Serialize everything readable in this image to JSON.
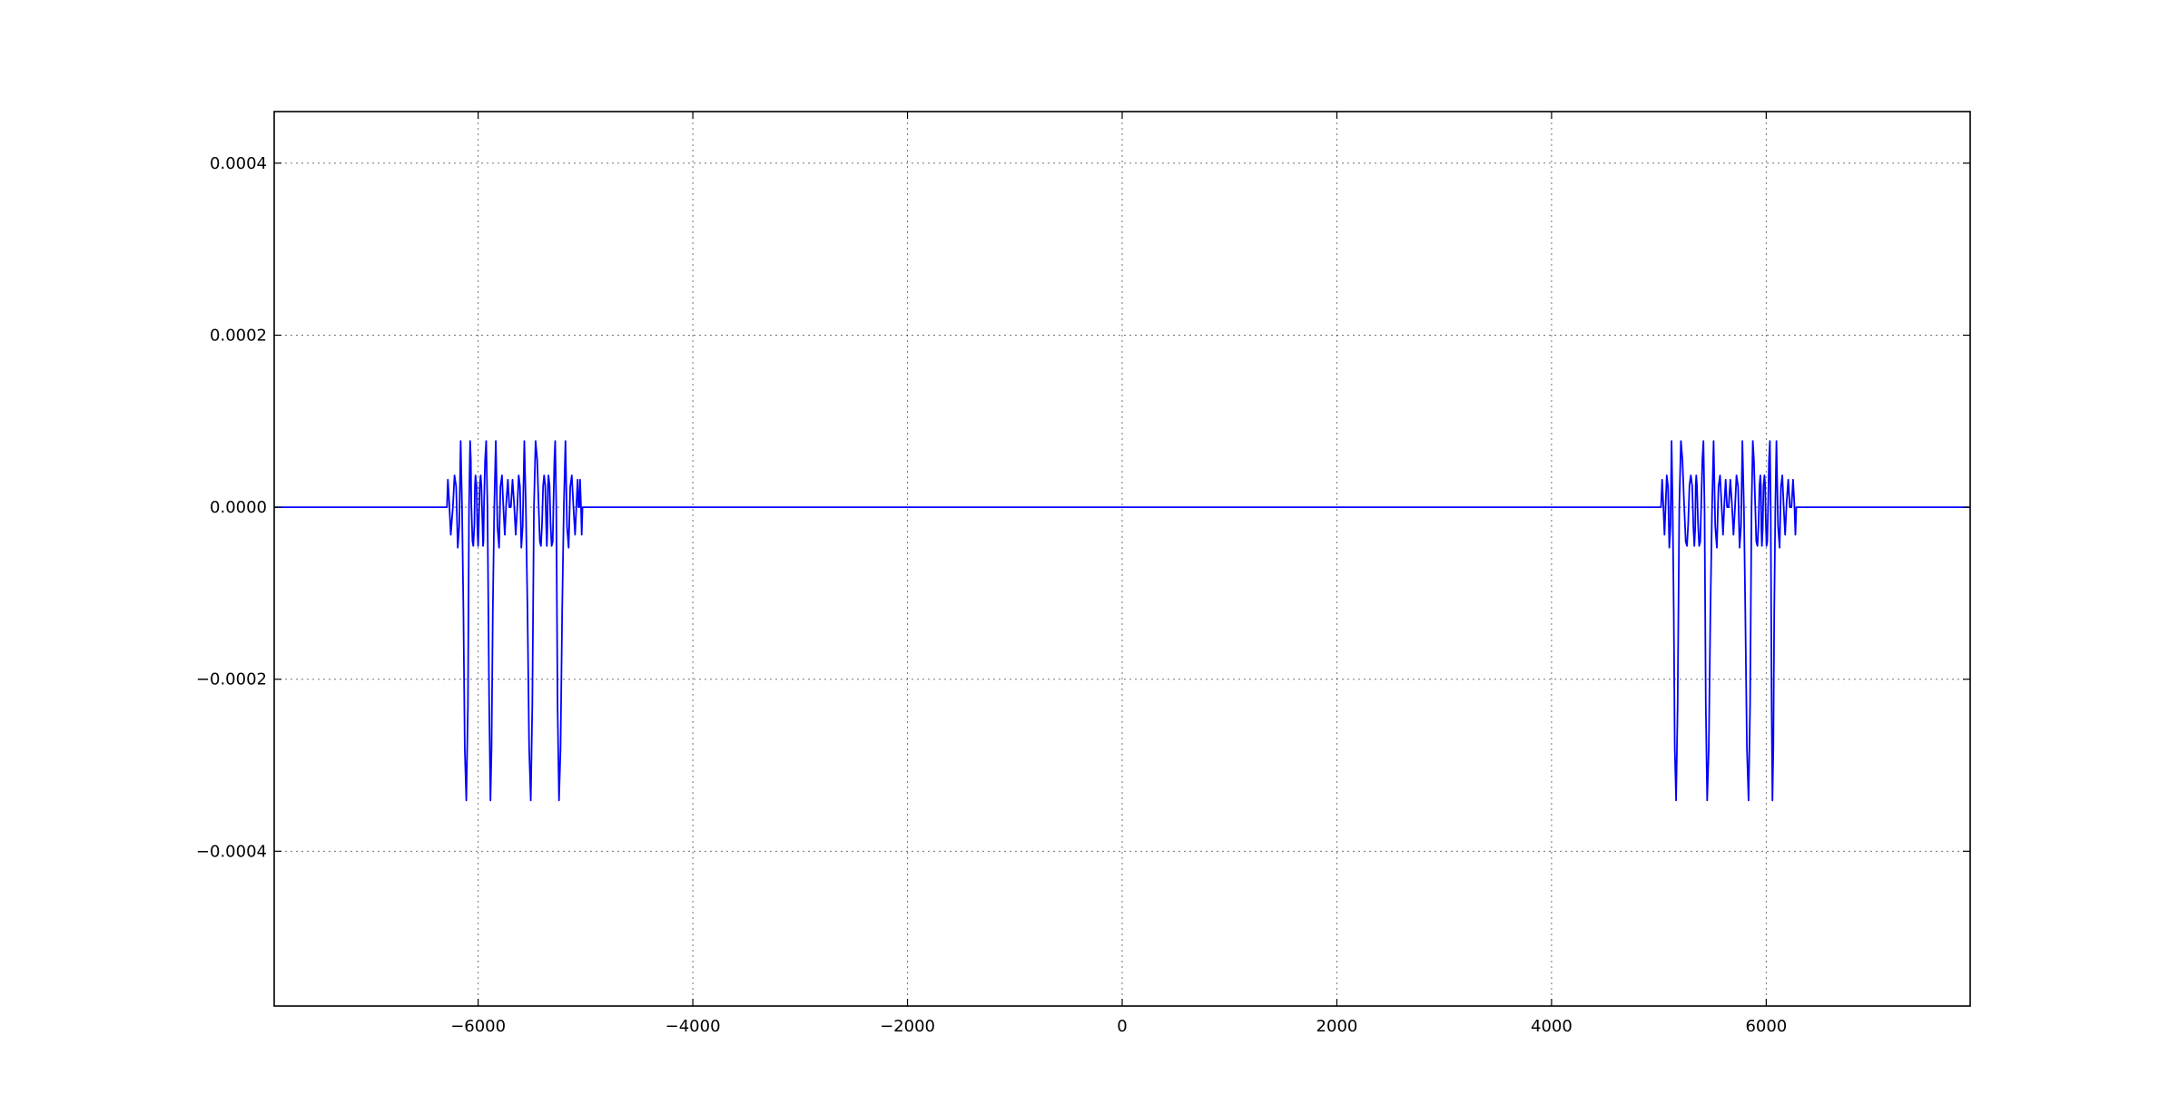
{
  "chart_data": {
    "type": "line",
    "title": "",
    "xlabel": "",
    "ylabel": "",
    "xlim": [
      -7900,
      7900
    ],
    "ylim": [
      -0.00058,
      0.00046
    ],
    "grid": true,
    "x_ticks": [
      -6000,
      -4000,
      -2000,
      0,
      2000,
      4000,
      6000
    ],
    "x_tick_labels": [
      "−6000",
      "−4000",
      "−2000",
      "0",
      "2000",
      "4000",
      "6000"
    ],
    "y_ticks": [
      0.0004,
      0.0002,
      0.0,
      -0.0002,
      -0.0004
    ],
    "y_tick_labels": [
      "0.0004",
      "0.0002",
      "0.0000",
      "−0.0002",
      "−0.0004"
    ],
    "series": [
      {
        "color": "#0000ff",
        "x": [
          -7900,
          -6290,
          -6282,
          -6269,
          -6255,
          -6235,
          -6220,
          -6205,
          -6190,
          -6176,
          -6163,
          -6150,
          -6137,
          -6125,
          -6110,
          -6095,
          -6085,
          -6075,
          -6068,
          -6064,
          -6053,
          -6045,
          -6035,
          -6030,
          -6025,
          -6015,
          -6007,
          -6000,
          -5995,
          -5985,
          -5977,
          -5970,
          -5960,
          -5955,
          -5950,
          -5945,
          -5935,
          -5925,
          -5913,
          -5897,
          -5885,
          -5875,
          -5863,
          -5850,
          -5835,
          -5820,
          -5805,
          -5792,
          -5778,
          -5765,
          -5752,
          -5738,
          -5723,
          -5709,
          -5695,
          -5680,
          -5665,
          -5650,
          -5635,
          -5622,
          -5610,
          -5598,
          -5585,
          -5570,
          -5555,
          -5540,
          -5525,
          -5510,
          -5495,
          -5480,
          -5465,
          -5450,
          -5437,
          -5425,
          -5415,
          -5405,
          -5395,
          -5385,
          -5375,
          -5365,
          -5360,
          -5355,
          -5350,
          -5345,
          -5335,
          -5325,
          -5315,
          -5305,
          -5298,
          -5290,
          -5282,
          -5272,
          -5260,
          -5247,
          -5232,
          -5217,
          -5202,
          -5187,
          -5172,
          -5157,
          -5142,
          -5127,
          -5112,
          -5097,
          -5083,
          -5073,
          -5065,
          -5058,
          -5050,
          -5043,
          -5035,
          -5028,
          -5018,
          5020,
          5030,
          5040,
          5052,
          5062,
          5073,
          5085,
          5097,
          5108,
          5118,
          5128,
          5138,
          5148,
          5160,
          5175,
          5190,
          5205,
          5220,
          5235,
          5250,
          5262,
          5273,
          5285,
          5297,
          5310,
          5322,
          5330,
          5338,
          5343,
          5348,
          5355,
          5365,
          5375,
          5385,
          5395,
          5405,
          5415,
          5425,
          5437,
          5450,
          5465,
          5480,
          5495,
          5510,
          5525,
          5540,
          5555,
          5570,
          5585,
          5598,
          5610,
          5622,
          5635,
          5650,
          5665,
          5680,
          5695,
          5709,
          5723,
          5738,
          5752,
          5765,
          5778,
          5792,
          5805,
          5820,
          5835,
          5850,
          5863,
          5875,
          5885,
          5897,
          5907,
          5918,
          5928,
          5937,
          5945,
          5950,
          5955,
          5960,
          5967,
          5975,
          5983,
          5990,
          5997,
          6003,
          6010,
          6018,
          6026,
          6034,
          6042,
          6050,
          6058,
          6066,
          6075,
          6085,
          6095,
          6110,
          6125,
          6137,
          6150,
          6163,
          6176,
          6190,
          6205,
          6220,
          6235,
          6250,
          6262,
          6272,
          6280,
          6285,
          7900
        ],
        "y": [
          0.0,
          0.0,
          3.2e-05,
          5e-06,
          -3.2e-05,
          0.0,
          3.7e-05,
          2.4e-05,
          -4.7e-05,
          -2.2e-05,
          7.7e-05,
          0.0,
          -0.00012,
          -0.00028,
          -0.000341,
          -0.00023,
          0.0,
          7.7e-05,
          5.5e-05,
          4e-06,
          -4e-05,
          -4.5e-05,
          -2e-05,
          2.5e-05,
          3.7e-05,
          2.5e-05,
          -2.5e-05,
          -4.5e-05,
          -2.5e-05,
          2.5e-05,
          3.7e-05,
          2.5e-05,
          -2e-05,
          -4.5e-05,
          -4e-05,
          4e-06,
          5.5e-05,
          7.7e-05,
          0.0,
          -0.00023,
          -0.000341,
          -0.00028,
          -0.00012,
          0.0,
          7.7e-05,
          -2.2e-05,
          -4.7e-05,
          2.4e-05,
          3.7e-05,
          0.0,
          -3.2e-05,
          5e-06,
          3.2e-05,
          0.0,
          0.0,
          3.2e-05,
          5e-06,
          -3.2e-05,
          0.0,
          3.7e-05,
          2.4e-05,
          -4.7e-05,
          -2.2e-05,
          7.7e-05,
          0.0,
          -0.00012,
          -0.00028,
          -0.000341,
          -0.00023,
          0.0,
          7.7e-05,
          5.5e-05,
          4e-06,
          -4e-05,
          -4.5e-05,
          -2e-05,
          2.5e-05,
          3.7e-05,
          2.5e-05,
          -2.5e-05,
          -4.5e-05,
          -2.5e-05,
          2.5e-05,
          3.7e-05,
          2.5e-05,
          -2e-05,
          -4.5e-05,
          -4e-05,
          4e-06,
          5.5e-05,
          7.7e-05,
          0.0,
          -0.00023,
          -0.000341,
          -0.00028,
          -0.00012,
          0.0,
          7.7e-05,
          -2.2e-05,
          -4.7e-05,
          2.4e-05,
          3.7e-05,
          0.0,
          -3.2e-05,
          5e-06,
          3.2e-05,
          0.0,
          0.0,
          3.2e-05,
          5e-06,
          -3.2e-05,
          0.0,
          0.0,
          0.0,
          3.2e-05,
          5e-06,
          -3.2e-05,
          0.0,
          3.7e-05,
          2.4e-05,
          -4.7e-05,
          -2.2e-05,
          7.7e-05,
          0.0,
          -0.00012,
          -0.00028,
          -0.000341,
          -0.00023,
          0.0,
          7.7e-05,
          5.5e-05,
          4e-06,
          -4e-05,
          -4.5e-05,
          -2e-05,
          2.5e-05,
          3.7e-05,
          2.5e-05,
          -2.5e-05,
          -4.5e-05,
          -2.5e-05,
          2.5e-05,
          3.7e-05,
          2.5e-05,
          -2e-05,
          -4.5e-05,
          -4e-05,
          4e-06,
          5.5e-05,
          7.7e-05,
          0.0,
          -0.00023,
          -0.000341,
          -0.00028,
          -0.00012,
          0.0,
          7.7e-05,
          -2.2e-05,
          -4.7e-05,
          2.4e-05,
          3.7e-05,
          0.0,
          -3.2e-05,
          5e-06,
          3.2e-05,
          0.0,
          0.0,
          3.2e-05,
          5e-06,
          -3.2e-05,
          0.0,
          3.7e-05,
          2.4e-05,
          -4.7e-05,
          -2.2e-05,
          7.7e-05,
          0.0,
          -0.00012,
          -0.00028,
          -0.000341,
          -0.00023,
          0.0,
          7.7e-05,
          5.5e-05,
          4e-06,
          -4e-05,
          -4.5e-05,
          -2e-05,
          2.5e-05,
          3.7e-05,
          2.5e-05,
          -2.5e-05,
          -4.5e-05,
          -2.5e-05,
          2.5e-05,
          3.7e-05,
          2.5e-05,
          -2e-05,
          -4.5e-05,
          -4e-05,
          4e-06,
          5.5e-05,
          7.7e-05,
          0.0,
          -0.00023,
          -0.000341,
          -0.00028,
          -0.00012,
          0.0,
          7.7e-05,
          -2.2e-05,
          -4.7e-05,
          2.4e-05,
          3.7e-05,
          0.0,
          -3.2e-05,
          5e-06,
          3.2e-05,
          0.0,
          0.0,
          3.2e-05,
          5e-06,
          -3.2e-05,
          0.0,
          0.0,
          0.0
        ]
      }
    ]
  }
}
